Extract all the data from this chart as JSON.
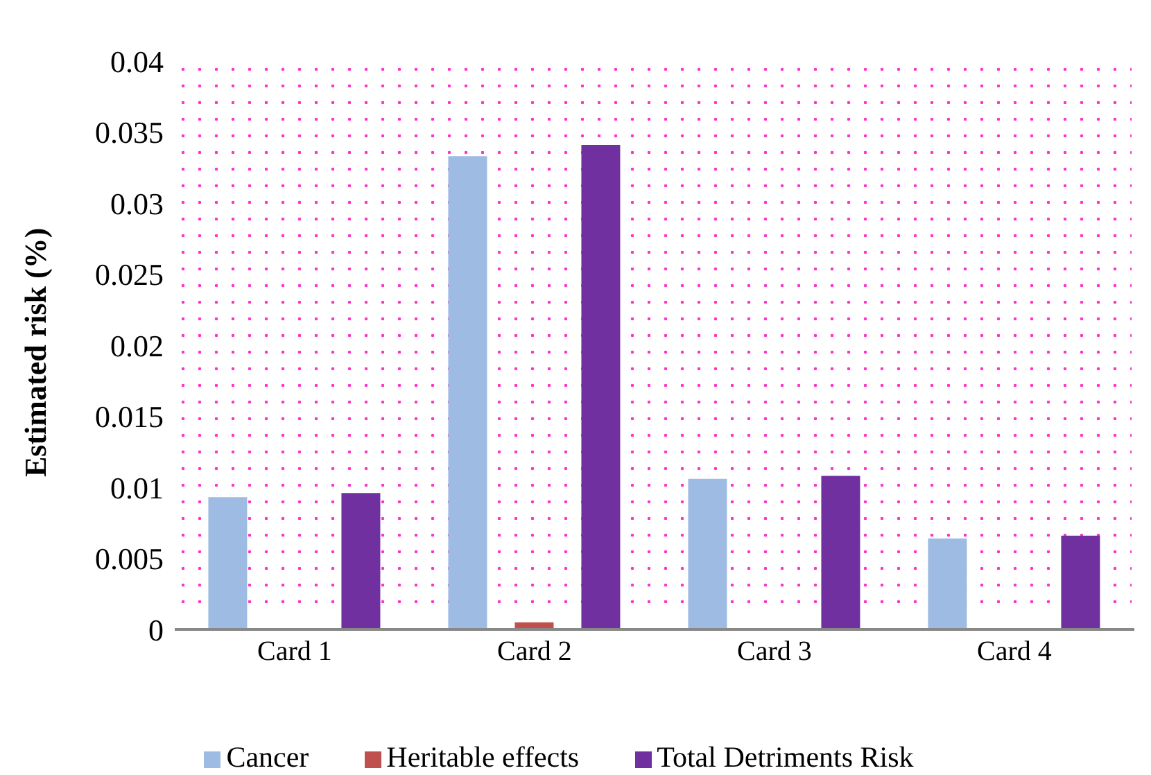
{
  "chart_data": {
    "type": "bar",
    "ylabel": "Estimated risk (%)",
    "categories": [
      "Card 1",
      "Card 2",
      "Card 3",
      "Card 4"
    ],
    "series": [
      {
        "name": "Cancer",
        "color": "#9dbbe3",
        "values": [
          0.0093,
          0.0333,
          0.0106,
          0.0064
        ]
      },
      {
        "name": "Heritable effects",
        "color": "#c0504d",
        "values": [
          0.0001,
          0.0005,
          0.0001,
          0
        ]
      },
      {
        "name": "Total Detriments Risk",
        "color": "#7030a0",
        "values": [
          0.0096,
          0.0341,
          0.0108,
          0.0066
        ]
      }
    ],
    "ylim": [
      0,
      0.04
    ],
    "yticks": [
      0,
      0.005,
      0.01,
      0.015,
      0.02,
      0.025,
      0.03,
      0.035,
      0.04
    ],
    "grid": false,
    "legend": "bottom"
  }
}
